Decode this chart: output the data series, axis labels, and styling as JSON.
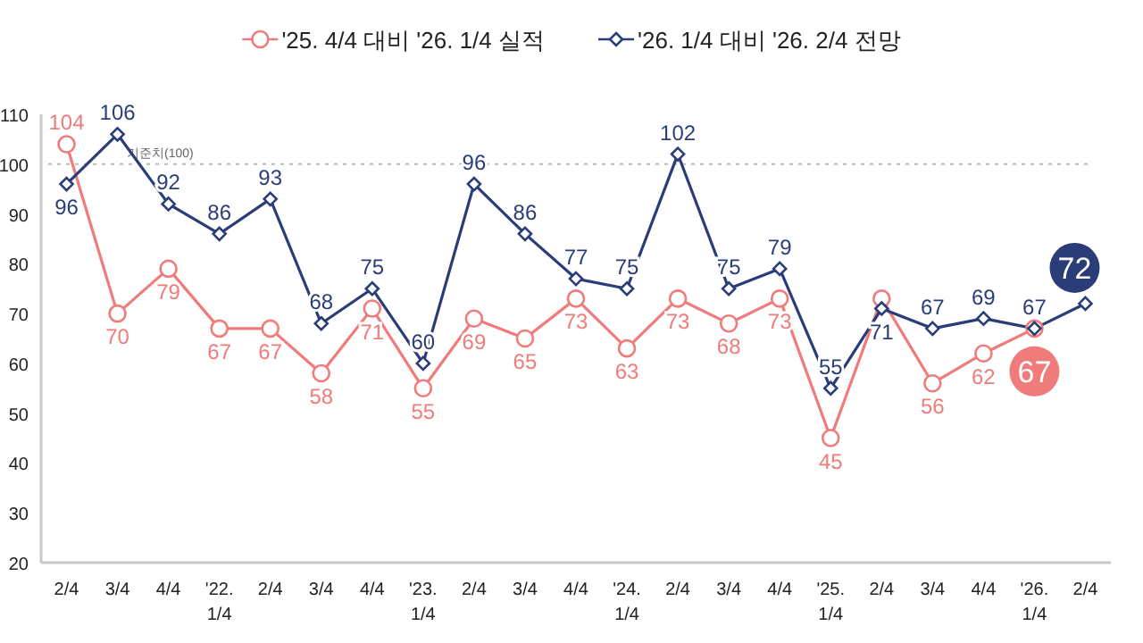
{
  "chart_data": {
    "type": "line",
    "categories": [
      "2/4",
      "3/4",
      "4/4",
      "'22. 1/4",
      "2/4",
      "3/4",
      "4/4",
      "'23. 1/4",
      "2/4",
      "3/4",
      "4/4",
      "'24. 1/4",
      "2/4",
      "3/4",
      "4/4",
      "'25. 1/4",
      "2/4",
      "3/4",
      "4/4",
      "'26. 1/4",
      "2/4"
    ],
    "series": [
      {
        "name": "'25. 4/4 대비 '26. 1/4 실적",
        "color": "#f07b7b",
        "marker": "circle",
        "values": [
          104,
          70,
          79,
          67,
          67,
          58,
          71,
          55,
          69,
          65,
          73,
          63,
          73,
          68,
          73,
          45,
          73,
          56,
          62,
          67,
          null
        ],
        "value_labels": [
          "104",
          "70",
          "79",
          "67",
          "67",
          "58",
          "71",
          "55",
          "69",
          "65",
          "73",
          "63",
          "73",
          "68",
          "73",
          "45",
          null,
          "56",
          "62",
          "67",
          null
        ]
      },
      {
        "name": "'26. 1/4 대비 '26. 2/4 전망",
        "color": "#2b3d78",
        "marker": "diamond",
        "values": [
          96,
          106,
          92,
          86,
          93,
          68,
          75,
          60,
          96,
          86,
          77,
          75,
          102,
          75,
          79,
          55,
          71,
          67,
          69,
          67,
          72
        ],
        "value_labels": [
          "96",
          "106",
          "92",
          "86",
          "93",
          "68",
          "75",
          "60",
          "96",
          "86",
          "77",
          "75",
          "102",
          "75",
          "79",
          "55",
          "71",
          "67",
          "69",
          "67",
          "72"
        ]
      }
    ],
    "ylim": [
      20,
      110
    ],
    "yticks": [
      20,
      30,
      40,
      50,
      60,
      70,
      80,
      90,
      100,
      110
    ],
    "ref_lines": [
      {
        "axis": "y",
        "value": 100,
        "label": "기준치(100)",
        "line_style": "dotted",
        "color": "#bbbbbb"
      }
    ],
    "legend": "top",
    "grid": false
  }
}
